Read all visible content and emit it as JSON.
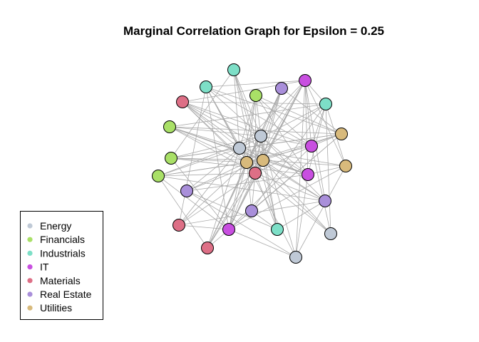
{
  "title": "Marginal Correlation Graph for Epsilon =  0.25",
  "legend": {
    "items": [
      {
        "label": "Energy",
        "color": "#BFC9D6"
      },
      {
        "label": "Financials",
        "color": "#A9E067"
      },
      {
        "label": "Industrials",
        "color": "#7DDFC7"
      },
      {
        "label": "IT",
        "color": "#C84FE0"
      },
      {
        "label": "Materials",
        "color": "#DD6F86"
      },
      {
        "label": "Real Estate",
        "color": "#A98FDA"
      },
      {
        "label": "Utilities",
        "color": "#D8BA7C"
      }
    ]
  },
  "graph": {
    "edge_color": "#A9A9A9",
    "node_border": "#000000",
    "nodes": [
      {
        "id": 0,
        "sector": "Energy"
      },
      {
        "id": 1,
        "sector": "Energy"
      },
      {
        "id": 2,
        "sector": "Energy"
      },
      {
        "id": 3,
        "sector": "Energy"
      },
      {
        "id": 4,
        "sector": "Financials"
      },
      {
        "id": 5,
        "sector": "Financials"
      },
      {
        "id": 6,
        "sector": "Financials"
      },
      {
        "id": 7,
        "sector": "Financials"
      },
      {
        "id": 8,
        "sector": "Industrials"
      },
      {
        "id": 9,
        "sector": "Industrials"
      },
      {
        "id": 10,
        "sector": "Industrials"
      },
      {
        "id": 11,
        "sector": "Industrials"
      },
      {
        "id": 12,
        "sector": "IT"
      },
      {
        "id": 13,
        "sector": "IT"
      },
      {
        "id": 14,
        "sector": "IT"
      },
      {
        "id": 15,
        "sector": "IT"
      },
      {
        "id": 16,
        "sector": "Materials"
      },
      {
        "id": 17,
        "sector": "Materials"
      },
      {
        "id": 18,
        "sector": "Materials"
      },
      {
        "id": 19,
        "sector": "Materials"
      },
      {
        "id": 20,
        "sector": "Real Estate"
      },
      {
        "id": 21,
        "sector": "Real Estate"
      },
      {
        "id": 22,
        "sector": "Real Estate"
      },
      {
        "id": 23,
        "sector": "Real Estate"
      },
      {
        "id": 24,
        "sector": "Utilities"
      },
      {
        "id": 25,
        "sector": "Utilities"
      },
      {
        "id": 26,
        "sector": "Utilities"
      },
      {
        "id": 27,
        "sector": "Utilities"
      }
    ],
    "edges": [
      [
        0,
        8
      ],
      [
        0,
        9
      ],
      [
        0,
        5
      ],
      [
        0,
        7
      ],
      [
        0,
        16
      ],
      [
        0,
        20
      ],
      [
        0,
        13
      ],
      [
        0,
        14
      ],
      [
        0,
        24
      ],
      [
        0,
        25
      ],
      [
        0,
        4
      ],
      [
        0,
        18
      ],
      [
        0,
        22
      ],
      [
        0,
        19
      ],
      [
        0,
        11
      ],
      [
        0,
        2
      ],
      [
        0,
        6
      ],
      [
        1,
        8
      ],
      [
        1,
        9
      ],
      [
        1,
        4
      ],
      [
        1,
        5
      ],
      [
        1,
        6
      ],
      [
        1,
        7
      ],
      [
        1,
        16
      ],
      [
        1,
        17
      ],
      [
        1,
        22
      ],
      [
        1,
        26
      ],
      [
        1,
        14
      ],
      [
        1,
        21
      ],
      [
        1,
        10
      ],
      [
        1,
        18
      ],
      [
        1,
        12
      ],
      [
        1,
        27
      ],
      [
        1,
        3
      ],
      [
        24,
        4
      ],
      [
        24,
        5
      ],
      [
        24,
        6
      ],
      [
        24,
        8
      ],
      [
        24,
        12
      ],
      [
        24,
        14
      ],
      [
        24,
        15
      ],
      [
        24,
        16
      ],
      [
        24,
        19
      ],
      [
        24,
        20
      ],
      [
        24,
        21
      ],
      [
        24,
        22
      ],
      [
        24,
        26
      ],
      [
        24,
        27
      ],
      [
        24,
        3
      ],
      [
        24,
        11
      ],
      [
        25,
        4
      ],
      [
        25,
        5
      ],
      [
        25,
        6
      ],
      [
        25,
        7
      ],
      [
        25,
        9
      ],
      [
        25,
        10
      ],
      [
        25,
        12
      ],
      [
        25,
        13
      ],
      [
        25,
        15
      ],
      [
        25,
        16
      ],
      [
        25,
        18
      ],
      [
        25,
        20
      ],
      [
        25,
        21
      ],
      [
        25,
        23
      ],
      [
        25,
        26
      ],
      [
        25,
        2
      ],
      [
        25,
        17
      ],
      [
        19,
        4
      ],
      [
        19,
        6
      ],
      [
        19,
        7
      ],
      [
        19,
        8
      ],
      [
        19,
        9
      ],
      [
        19,
        12
      ],
      [
        19,
        13
      ],
      [
        19,
        15
      ],
      [
        19,
        16
      ],
      [
        19,
        17
      ],
      [
        19,
        20
      ],
      [
        19,
        22
      ],
      [
        19,
        23
      ],
      [
        19,
        11
      ],
      [
        19,
        18
      ],
      [
        19,
        3
      ],
      [
        26,
        4
      ],
      [
        26,
        5
      ],
      [
        26,
        7
      ],
      [
        26,
        9
      ],
      [
        26,
        13
      ],
      [
        26,
        20
      ],
      [
        26,
        23
      ],
      [
        26,
        18
      ],
      [
        27,
        12
      ],
      [
        27,
        15
      ],
      [
        27,
        14
      ],
      [
        27,
        10
      ],
      [
        14,
        4
      ],
      [
        14,
        5
      ],
      [
        14,
        7
      ],
      [
        14,
        12
      ],
      [
        14,
        21
      ],
      [
        14,
        16
      ],
      [
        14,
        10
      ],
      [
        15,
        5
      ],
      [
        15,
        6
      ],
      [
        15,
        7
      ],
      [
        15,
        13
      ],
      [
        15,
        17
      ],
      [
        15,
        20
      ],
      [
        15,
        12
      ],
      [
        15,
        23
      ],
      [
        15,
        9
      ],
      [
        13,
        9
      ],
      [
        13,
        12
      ],
      [
        13,
        16
      ],
      [
        13,
        10
      ],
      [
        13,
        7
      ],
      [
        12,
        9
      ],
      [
        12,
        10
      ],
      [
        12,
        16
      ],
      [
        12,
        22
      ],
      [
        2,
        12
      ],
      [
        2,
        14
      ],
      [
        2,
        27
      ],
      [
        2,
        21
      ],
      [
        3,
        10
      ],
      [
        3,
        13
      ],
      [
        22,
        6
      ],
      [
        22,
        17
      ],
      [
        22,
        11
      ],
      [
        23,
        10
      ],
      [
        23,
        11
      ],
      [
        4,
        10
      ],
      [
        5,
        8
      ],
      [
        6,
        18
      ],
      [
        20,
        18
      ],
      [
        17,
        9
      ],
      [
        21,
        11
      ],
      [
        16,
        10
      ],
      [
        18,
        12
      ],
      [
        11,
        8
      ],
      [
        2,
        15
      ]
    ]
  }
}
